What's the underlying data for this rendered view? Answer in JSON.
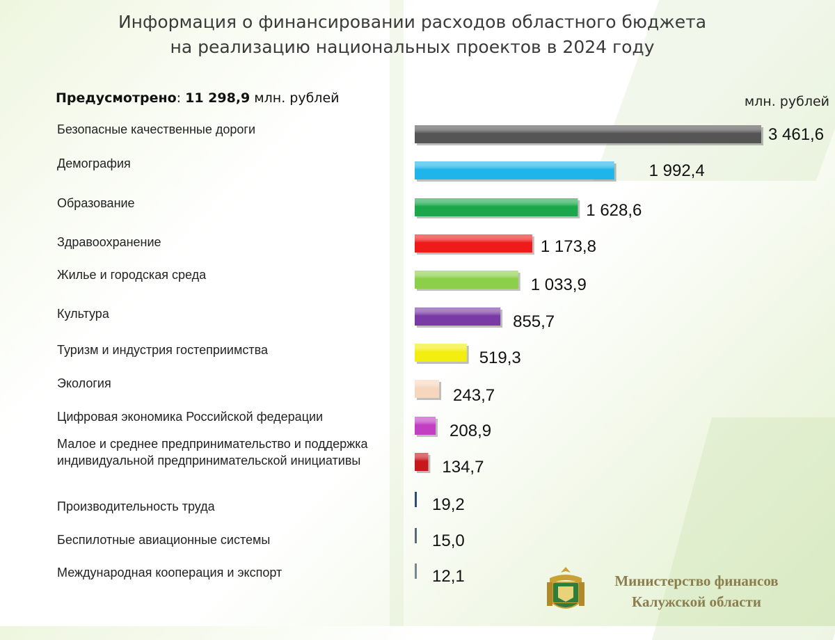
{
  "title": {
    "line1": "Информация о финансировании расходов областного бюджета",
    "line2": "на реализацию национальных проектов в 2024 году"
  },
  "total": {
    "label": "Предусмотрено",
    "separator": ": ",
    "value": "11 298,9",
    "unit": " млн. рублей"
  },
  "unit_label": "млн. рублей",
  "footer": {
    "line1": "Министерство финансов",
    "line2": "Калужской области"
  },
  "chart_data": {
    "type": "bar",
    "orientation": "horizontal",
    "categories": [
      "Безопасные качественные дороги",
      "Демография",
      "Образование",
      "Здравоохранение",
      "Жилье и городская среда",
      "Культура",
      "Туризм и индустрия гостеприимства",
      "Экология",
      "Цифровая экономика Российской федерации",
      "Малое и среднее предпринимательство и поддержка индивидуальной предпринимательской инициативы",
      "Производительность труда",
      "Беспилотные авиационные системы",
      "Международная кооперация и экспорт"
    ],
    "values": [
      3461.6,
      1992.4,
      1628.6,
      1173.8,
      1033.9,
      855.7,
      519.3,
      243.7,
      208.9,
      134.7,
      19.2,
      15.0,
      12.1
    ],
    "value_labels": [
      "3 461,6",
      "1 992,4",
      "1 628,6",
      "1 173,8",
      "1 033,9",
      "855,7",
      "519,3",
      "243,7",
      "208,9",
      "134,7",
      "19,2",
      "15,0",
      "12,1"
    ],
    "colors": [
      "#555555",
      "#1fb4ea",
      "#1aa84a",
      "#ef1b1b",
      "#8ccf48",
      "#7a3aa6",
      "#f2ee10",
      "#f7d6be",
      "#c23fc4",
      "#c8181c",
      "#2c4a7a",
      "#5a6a78",
      "#7a8690"
    ],
    "xlim": [
      0,
      3461.6
    ],
    "grid": false,
    "legend": "none"
  }
}
